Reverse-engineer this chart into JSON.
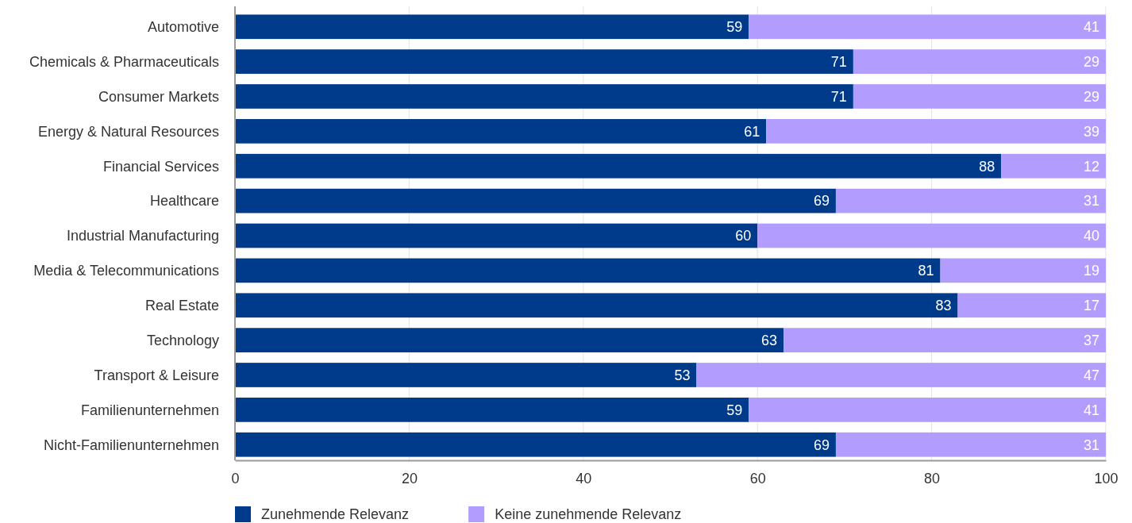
{
  "chart_data": {
    "type": "bar",
    "orientation": "horizontal",
    "stacked": true,
    "data_labels": true,
    "grid": "x",
    "legend": "bottom",
    "xlim": [
      0,
      100
    ],
    "xticks": [
      0,
      20,
      40,
      60,
      80,
      100
    ],
    "categories": [
      "Automotive",
      "Chemicals & Pharmaceuticals",
      "Consumer Markets",
      "Energy & Natural Resources",
      "Financial Services",
      "Healthcare",
      "Industrial Manufacturing",
      "Media & Telecommunications",
      "Real Estate",
      "Technology",
      "Transport & Leisure",
      "Familienunternehmen",
      "Nicht-Familienunternehmen"
    ],
    "series": [
      {
        "name": "Zunehmende Relevanz",
        "color": "#003a8a",
        "values": [
          59,
          71,
          71,
          61,
          88,
          69,
          60,
          81,
          83,
          63,
          53,
          59,
          69
        ]
      },
      {
        "name": "Keine zunehmende Relevanz",
        "color": "#b29dff",
        "values": [
          41,
          29,
          29,
          39,
          12,
          31,
          40,
          19,
          17,
          37,
          47,
          41,
          31
        ]
      }
    ]
  }
}
